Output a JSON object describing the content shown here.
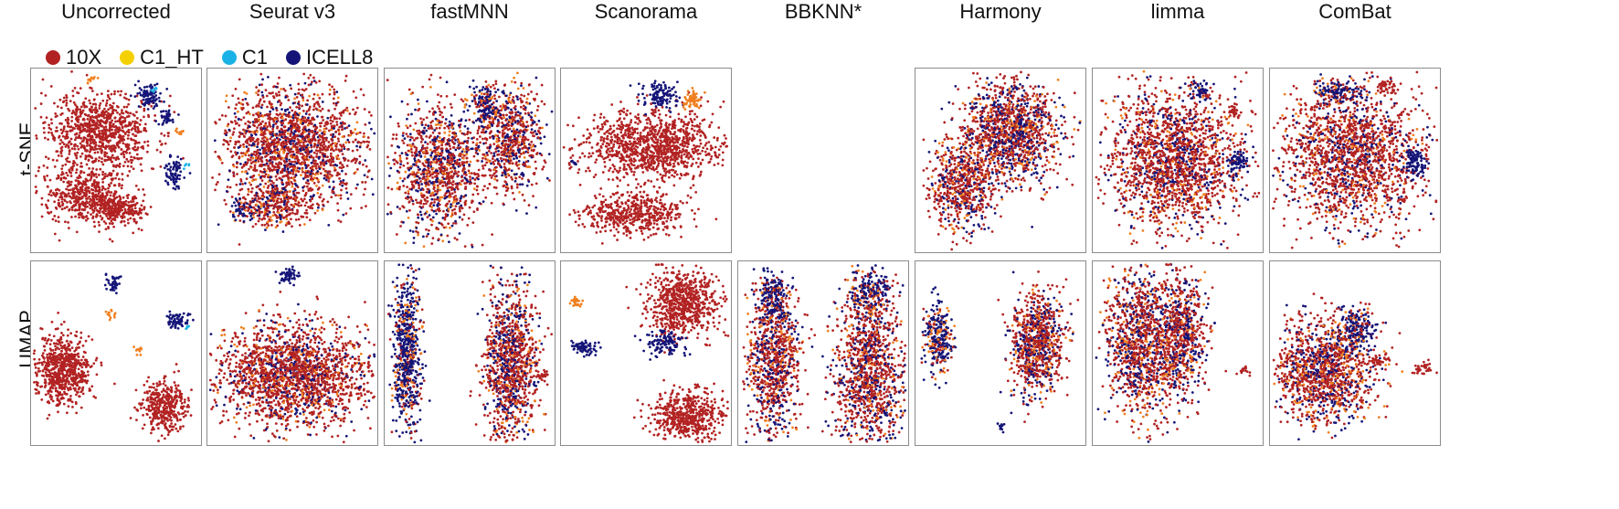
{
  "methods": [
    "Uncorrected",
    "Seurat v3",
    "fastMNN",
    "Scanorama",
    "BBKNN*",
    "Harmony",
    "limma",
    "ComBat"
  ],
  "rows": [
    "t-SNE",
    "UMAP"
  ],
  "legend": [
    {
      "label": "10X",
      "color": "#B22222"
    },
    {
      "label": "C1_HT",
      "color": "#F5D000"
    },
    {
      "label": "C1",
      "color": "#1AB2E6"
    },
    {
      "label": "ICELL8",
      "color": "#141478"
    }
  ],
  "mix_color": "#F07F1E",
  "chart_data": {
    "type": "scatter",
    "title": "",
    "series": [
      {
        "name": "10X",
        "color": "#B22222"
      },
      {
        "name": "C1_HT",
        "color": "#F5D000"
      },
      {
        "name": "C1",
        "color": "#1AB2E6"
      },
      {
        "name": "ICELL8",
        "color": "#141478"
      }
    ],
    "panels": [
      {
        "method": "Uncorrected",
        "embedding": "t-SNE",
        "present": true
      },
      {
        "method": "Seurat v3",
        "embedding": "t-SNE",
        "present": true
      },
      {
        "method": "fastMNN",
        "embedding": "t-SNE",
        "present": true
      },
      {
        "method": "Scanorama",
        "embedding": "t-SNE",
        "present": true
      },
      {
        "method": "BBKNN*",
        "embedding": "t-SNE",
        "present": false
      },
      {
        "method": "Harmony",
        "embedding": "t-SNE",
        "present": true
      },
      {
        "method": "limma",
        "embedding": "t-SNE",
        "present": true
      },
      {
        "method": "ComBat",
        "embedding": "t-SNE",
        "present": true
      },
      {
        "method": "Uncorrected",
        "embedding": "UMAP",
        "present": true
      },
      {
        "method": "Seurat v3",
        "embedding": "UMAP",
        "present": true
      },
      {
        "method": "fastMNN",
        "embedding": "UMAP",
        "present": true
      },
      {
        "method": "Scanorama",
        "embedding": "UMAP",
        "present": true
      },
      {
        "method": "BBKNN*",
        "embedding": "UMAP",
        "present": true
      },
      {
        "method": "Harmony",
        "embedding": "UMAP",
        "present": true
      },
      {
        "method": "limma",
        "embedding": "UMAP",
        "present": true
      },
      {
        "method": "ComBat",
        "embedding": "UMAP",
        "present": true
      }
    ]
  }
}
